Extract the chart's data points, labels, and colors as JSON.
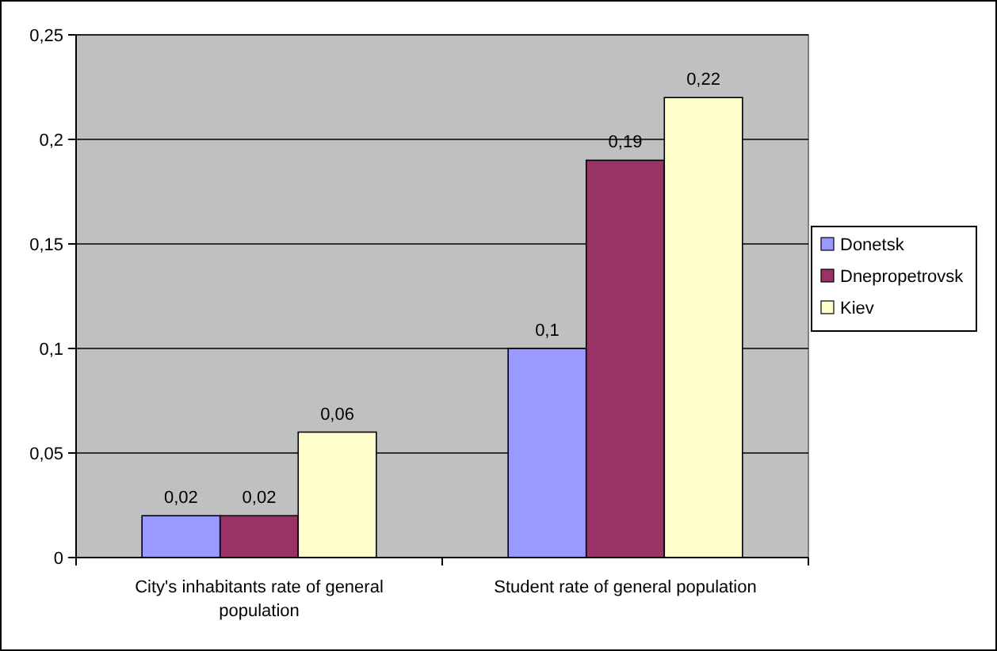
{
  "chart_data": {
    "type": "bar",
    "categories": [
      "City's inhabitants rate of general population",
      "Student rate of general population"
    ],
    "series": [
      {
        "name": "Donetsk",
        "color": "#9999ff",
        "values": [
          0.02,
          0.1
        ],
        "value_labels": [
          "0,02",
          "0,1"
        ]
      },
      {
        "name": "Dnepropetrovsk",
        "color": "#993366",
        "values": [
          0.02,
          0.19
        ],
        "value_labels": [
          "0,02",
          "0,19"
        ]
      },
      {
        "name": "Kiev",
        "color": "#ffffcc",
        "values": [
          0.06,
          0.22
        ],
        "value_labels": [
          "0,06",
          "0,22"
        ]
      }
    ],
    "ylim": [
      0,
      0.25
    ],
    "yticks": [
      {
        "value": 0,
        "label": "0"
      },
      {
        "value": 0.05,
        "label": "0,05"
      },
      {
        "value": 0.1,
        "label": "0,1"
      },
      {
        "value": 0.15,
        "label": "0,15"
      },
      {
        "value": 0.2,
        "label": "0,2"
      },
      {
        "value": 0.25,
        "label": "0,25"
      }
    ],
    "grid": "y",
    "legend": "right"
  }
}
